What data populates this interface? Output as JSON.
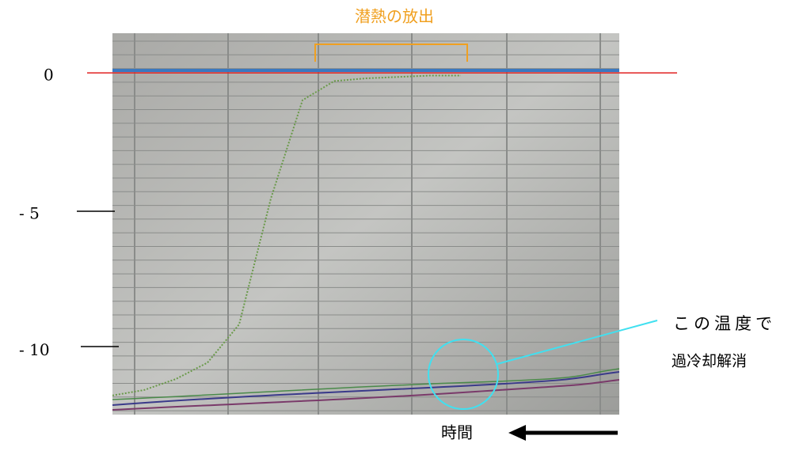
{
  "chart_data": {
    "type": "line",
    "yticks": [
      0,
      {
        "value": -5,
        "label": "- 5"
      },
      {
        "value": -10,
        "label": "- 10"
      }
    ],
    "ylim": [
      1.45,
      -12.5
    ],
    "categories": [
      null,
      null,
      null,
      null,
      null,
      null,
      null,
      null,
      null,
      null,
      null,
      null,
      null,
      null,
      null,
      null,
      null
    ],
    "series": [
      {
        "color": "#6a9a4a",
        "values": [
          -11.8,
          -11.6,
          -11.2,
          -10.6,
          -9.2,
          -4.6,
          -1.0,
          -0.3,
          -0.2,
          -0.15,
          -0.1,
          -0.1,
          null,
          null,
          null,
          null,
          null
        ]
      }
    ],
    "annotations": {
      "latent_heat": "潜熱の放出",
      "supercool_1": "この温度で",
      "supercool_2": "過冷却解消",
      "time": "時間"
    },
    "zero_line_color": "#e02020"
  }
}
